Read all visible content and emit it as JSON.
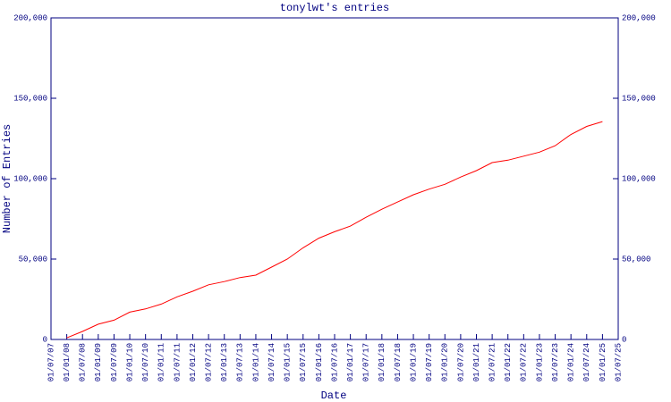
{
  "chart_data": {
    "type": "line",
    "title": "tonylwt's entries",
    "xlabel": "Date",
    "ylabel": "Number of Entries",
    "x": [
      "01/07/07",
      "01/01/08",
      "01/07/08",
      "01/01/09",
      "01/07/09",
      "01/01/10",
      "01/07/10",
      "01/01/11",
      "01/07/11",
      "01/01/12",
      "01/07/12",
      "01/01/13",
      "01/07/13",
      "01/01/14",
      "01/07/14",
      "01/01/15",
      "01/07/15",
      "01/01/16",
      "01/07/16",
      "01/01/17",
      "01/07/17",
      "01/01/18",
      "01/07/18",
      "01/01/19",
      "01/07/19",
      "01/01/20",
      "01/07/20",
      "01/01/21",
      "01/07/21",
      "01/01/22",
      "01/07/22",
      "01/01/23",
      "01/07/23",
      "01/01/24",
      "01/07/24",
      "01/01/25",
      "01/07/25"
    ],
    "series": [
      {
        "name": "tonylwt",
        "color": "#ff0000",
        "values": [
          null,
          1000,
          5000,
          9500,
          12000,
          17000,
          19000,
          22000,
          26500,
          30000,
          34000,
          36000,
          38500,
          40000,
          45000,
          50000,
          57000,
          63000,
          67000,
          70500,
          76000,
          81000,
          85500,
          90000,
          93500,
          96500,
          101000,
          105000,
          110000,
          111500,
          114000,
          116500,
          120500,
          127500,
          132500,
          135500,
          null
        ]
      }
    ],
    "ylim": [
      0,
      200000
    ],
    "yticks": [
      0,
      {
        "value": 50000,
        "label": "50,000"
      },
      {
        "value": 100000,
        "label": "100,000"
      },
      {
        "value": 150000,
        "label": "150,000"
      },
      {
        "value": 200000,
        "label": "200,000"
      }
    ],
    "y2lim": [
      0,
      200000
    ],
    "y2ticks": [
      0,
      {
        "value": 50000,
        "label": "50,000"
      },
      {
        "value": 100000,
        "label": "100,000"
      },
      {
        "value": 150000,
        "label": "150,000"
      },
      {
        "value": 200000,
        "label": "200,000"
      }
    ],
    "grid": false
  }
}
